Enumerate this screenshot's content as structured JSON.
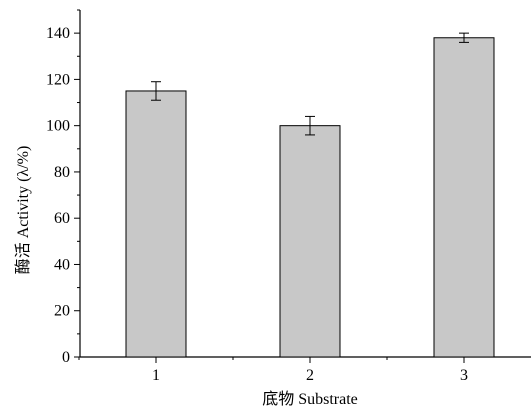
{
  "chart_data": {
    "type": "bar",
    "categories": [
      "1",
      "2",
      "3"
    ],
    "values": [
      115,
      100,
      138
    ],
    "errors": [
      4,
      4,
      2
    ],
    "xlabel": "底物 Substrate",
    "ylabel": "酶活 Activity (λ/%)",
    "ylim": [
      0,
      150
    ],
    "yticks": [
      0,
      20,
      40,
      60,
      80,
      100,
      120,
      140
    ],
    "grid": false,
    "colors": {
      "bar_fill": "#c8c8c8",
      "bar_stroke": "#000000",
      "axis": "#000000"
    }
  }
}
